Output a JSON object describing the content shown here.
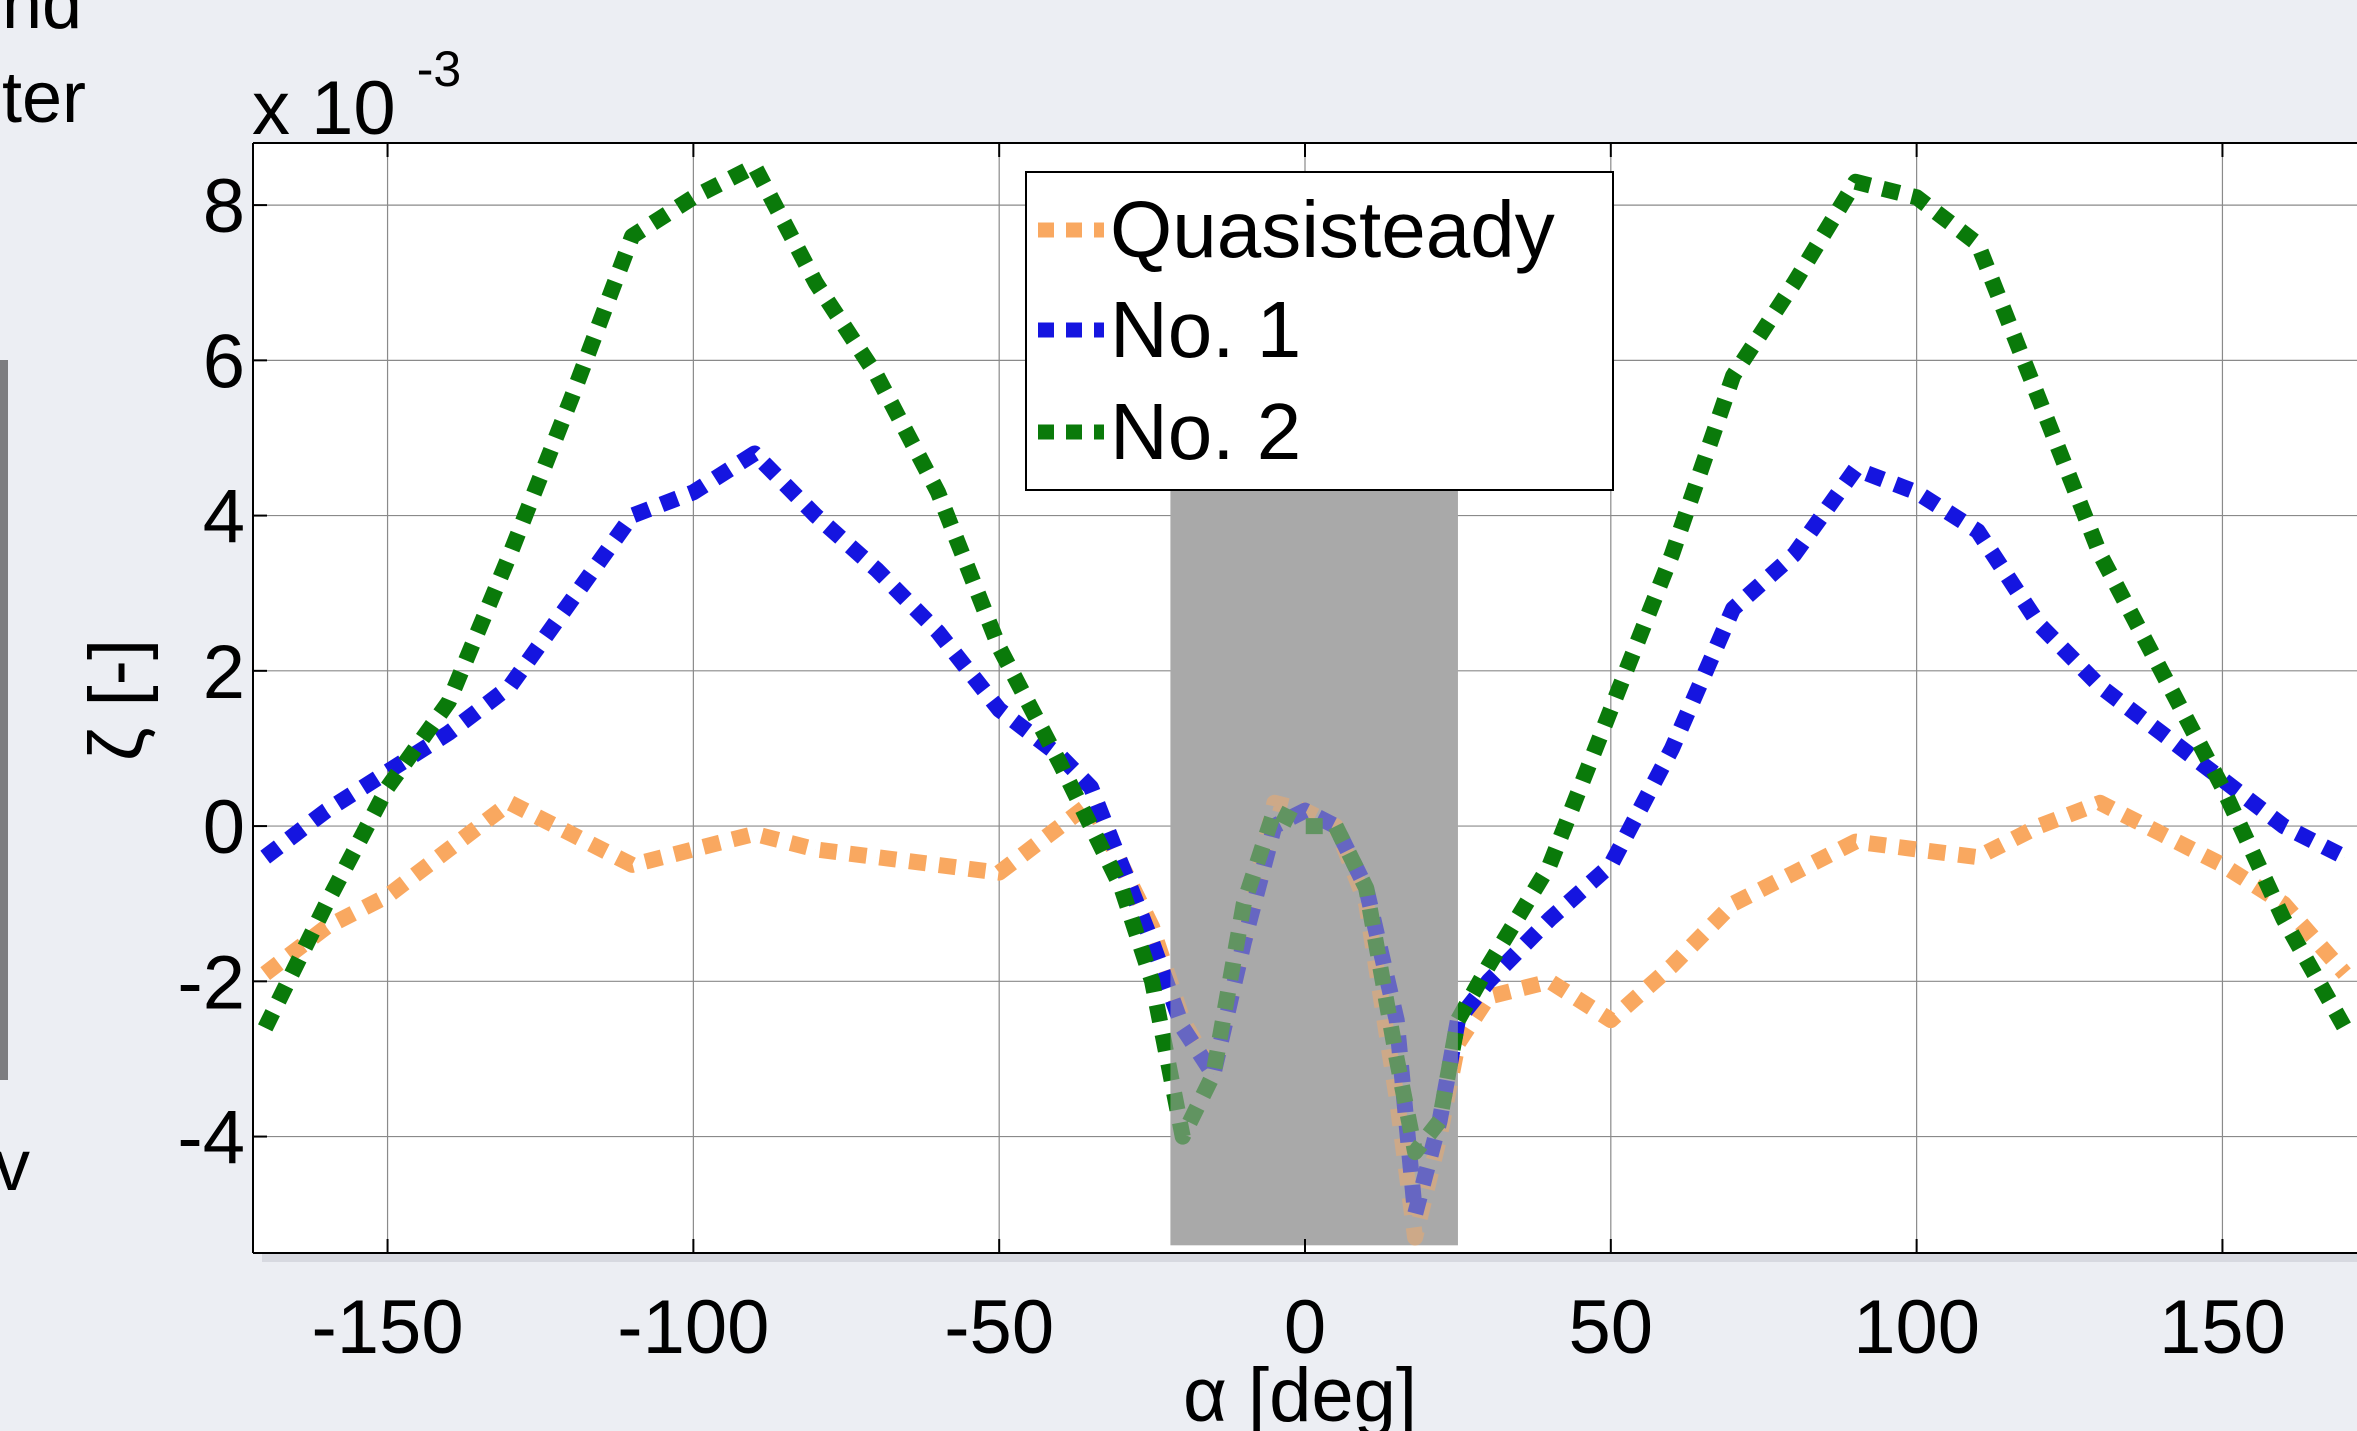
{
  "page_fragments": {
    "top_left_line1": "nd",
    "top_left_line2": "ter",
    "bottom_left": "v"
  },
  "chart_data": {
    "type": "line",
    "xlabel": "α [deg]",
    "ylabel": "ζ [-]",
    "y_multiplier_base": "x 10",
    "y_multiplier_exp": "-3",
    "xlim": [
      -172,
      172
    ],
    "ylim": [
      -5.5,
      8.8
    ],
    "x_ticks": [
      -150,
      -100,
      -50,
      0,
      50,
      100,
      150
    ],
    "x_tick_labels": [
      "-150",
      "-100",
      "-50",
      "0",
      "50",
      "100",
      "150"
    ],
    "y_ticks": [
      -4,
      -2,
      0,
      2,
      4,
      6,
      8
    ],
    "y_tick_labels": [
      "-4",
      "-2",
      "0",
      "2",
      "4",
      "6",
      "8"
    ],
    "grid": true,
    "legend_position": "top-center",
    "shaded_region": {
      "x_start": -22,
      "x_end": 25,
      "y_top": 4.4,
      "y_bottom": -5.4,
      "color": "#a9a9a9"
    },
    "series": [
      {
        "name": "Quasisteady",
        "color": "#f9a860",
        "points": [
          [
            -170,
            -1.9
          ],
          [
            -160,
            -1.3
          ],
          [
            -150,
            -0.9
          ],
          [
            -140,
            -0.3
          ],
          [
            -130,
            0.3
          ],
          [
            -120,
            -0.1
          ],
          [
            -110,
            -0.5
          ],
          [
            -100,
            -0.3
          ],
          [
            -90,
            -0.1
          ],
          [
            -80,
            -0.3
          ],
          [
            -70,
            -0.4
          ],
          [
            -60,
            -0.5
          ],
          [
            -50,
            -0.6
          ],
          [
            -40,
            0.0
          ],
          [
            -35,
            0.3
          ],
          [
            -30,
            -0.5
          ],
          [
            -25,
            -1.3
          ],
          [
            -20,
            -2.5
          ],
          [
            -15,
            -3.2
          ],
          [
            -10,
            -1.5
          ],
          [
            -5,
            0.3
          ],
          [
            0,
            0.2
          ],
          [
            5,
            0.0
          ],
          [
            10,
            -1.0
          ],
          [
            15,
            -3.5
          ],
          [
            18,
            -5.3
          ],
          [
            22,
            -4.0
          ],
          [
            25,
            -2.8
          ],
          [
            30,
            -2.2
          ],
          [
            40,
            -2.0
          ],
          [
            50,
            -2.5
          ],
          [
            60,
            -1.8
          ],
          [
            70,
            -1.0
          ],
          [
            80,
            -0.6
          ],
          [
            90,
            -0.2
          ],
          [
            100,
            -0.3
          ],
          [
            110,
            -0.4
          ],
          [
            120,
            0.0
          ],
          [
            130,
            0.3
          ],
          [
            140,
            -0.1
          ],
          [
            150,
            -0.5
          ],
          [
            160,
            -1.0
          ],
          [
            170,
            -1.9
          ]
        ]
      },
      {
        "name": "No. 1",
        "color": "#1515e0",
        "points": [
          [
            -170,
            -0.4
          ],
          [
            -160,
            0.2
          ],
          [
            -150,
            0.7
          ],
          [
            -140,
            1.2
          ],
          [
            -130,
            1.8
          ],
          [
            -120,
            2.9
          ],
          [
            -110,
            4.0
          ],
          [
            -100,
            4.3
          ],
          [
            -90,
            4.8
          ],
          [
            -80,
            4.0
          ],
          [
            -70,
            3.3
          ],
          [
            -60,
            2.5
          ],
          [
            -50,
            1.5
          ],
          [
            -40,
            0.9
          ],
          [
            -35,
            0.5
          ],
          [
            -30,
            -0.5
          ],
          [
            -25,
            -1.5
          ],
          [
            -20,
            -2.6
          ],
          [
            -15,
            -3.2
          ],
          [
            -10,
            -1.5
          ],
          [
            -5,
            0.0
          ],
          [
            0,
            0.2
          ],
          [
            5,
            0.0
          ],
          [
            10,
            -0.8
          ],
          [
            15,
            -2.5
          ],
          [
            18,
            -5.0
          ],
          [
            22,
            -3.8
          ],
          [
            25,
            -2.5
          ],
          [
            30,
            -2.0
          ],
          [
            40,
            -1.2
          ],
          [
            50,
            -0.5
          ],
          [
            60,
            1.0
          ],
          [
            70,
            2.8
          ],
          [
            80,
            3.5
          ],
          [
            90,
            4.6
          ],
          [
            100,
            4.3
          ],
          [
            110,
            3.8
          ],
          [
            120,
            2.6
          ],
          [
            130,
            1.8
          ],
          [
            140,
            1.2
          ],
          [
            150,
            0.6
          ],
          [
            160,
            0.0
          ],
          [
            170,
            -0.4
          ]
        ]
      },
      {
        "name": "No. 2",
        "color": "#0a7a0a",
        "points": [
          [
            -170,
            -2.6
          ],
          [
            -160,
            -1.0
          ],
          [
            -150,
            0.5
          ],
          [
            -140,
            1.6
          ],
          [
            -130,
            3.5
          ],
          [
            -120,
            5.5
          ],
          [
            -110,
            7.6
          ],
          [
            -100,
            8.1
          ],
          [
            -90,
            8.5
          ],
          [
            -80,
            7.0
          ],
          [
            -70,
            5.8
          ],
          [
            -60,
            4.3
          ],
          [
            -50,
            2.3
          ],
          [
            -40,
            0.8
          ],
          [
            -35,
            0.0
          ],
          [
            -30,
            -0.8
          ],
          [
            -25,
            -2.0
          ],
          [
            -20,
            -4.0
          ],
          [
            -15,
            -3.2
          ],
          [
            -10,
            -1.0
          ],
          [
            -5,
            0.2
          ],
          [
            0,
            0.0
          ],
          [
            5,
            0.0
          ],
          [
            10,
            -0.8
          ],
          [
            15,
            -3.0
          ],
          [
            18,
            -4.2
          ],
          [
            22,
            -3.8
          ],
          [
            25,
            -2.5
          ],
          [
            30,
            -1.8
          ],
          [
            40,
            -0.5
          ],
          [
            50,
            1.5
          ],
          [
            60,
            3.5
          ],
          [
            70,
            5.8
          ],
          [
            80,
            7.0
          ],
          [
            90,
            8.3
          ],
          [
            100,
            8.1
          ],
          [
            110,
            7.5
          ],
          [
            120,
            5.5
          ],
          [
            130,
            3.5
          ],
          [
            140,
            2.0
          ],
          [
            150,
            0.5
          ],
          [
            160,
            -1.2
          ],
          [
            170,
            -2.6
          ]
        ]
      }
    ]
  }
}
